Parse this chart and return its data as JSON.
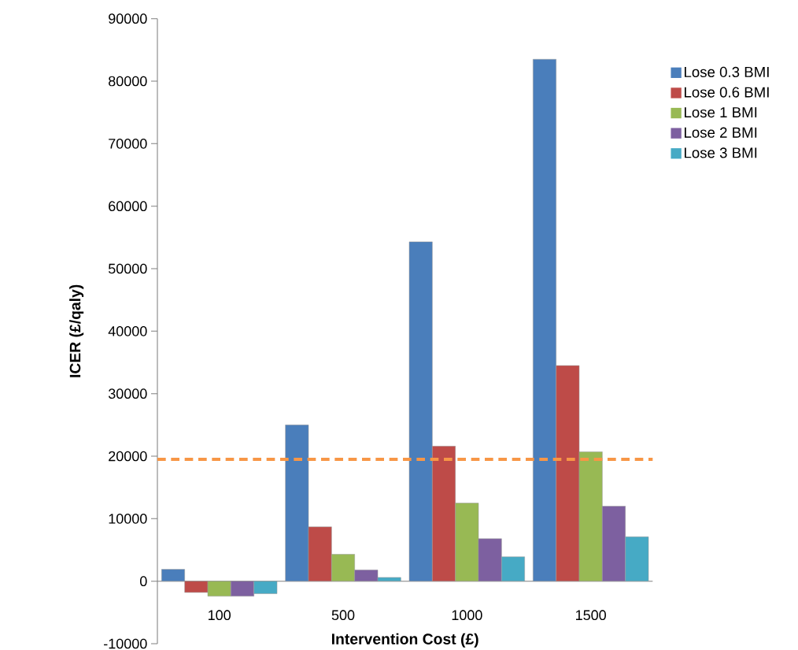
{
  "chart_data": {
    "type": "bar",
    "xlabel": "Intervention Cost (£)",
    "ylabel": "ICER (£/qaly)",
    "categories": [
      "100",
      "500",
      "1000",
      "1500"
    ],
    "series": [
      {
        "name": "Lose 0.3 BMI",
        "color": "#4a7ebb",
        "values": [
          1900,
          25000,
          54300,
          83500
        ]
      },
      {
        "name": "Lose 0.6 BMI",
        "color": "#be4b48",
        "values": [
          -1800,
          8700,
          21600,
          34500
        ]
      },
      {
        "name": "Lose 1 BMI",
        "color": "#98b954",
        "values": [
          -2400,
          4300,
          12500,
          20700
        ]
      },
      {
        "name": "Lose 2 BMI",
        "color": "#7d60a0",
        "values": [
          -2400,
          1800,
          6800,
          12000
        ]
      },
      {
        "name": "Lose 3 BMI",
        "color": "#46aac5",
        "values": [
          -2000,
          600,
          3900,
          7100
        ]
      }
    ],
    "ylim": [
      -10000,
      90000
    ],
    "yticks": [
      -10000,
      0,
      10000,
      20000,
      30000,
      40000,
      50000,
      60000,
      70000,
      80000,
      90000
    ],
    "ref_lines": [
      {
        "axis": "y",
        "value": 19500,
        "color": "#f79646",
        "line_style": "dashed"
      }
    ],
    "legend": "right",
    "grid": false
  }
}
